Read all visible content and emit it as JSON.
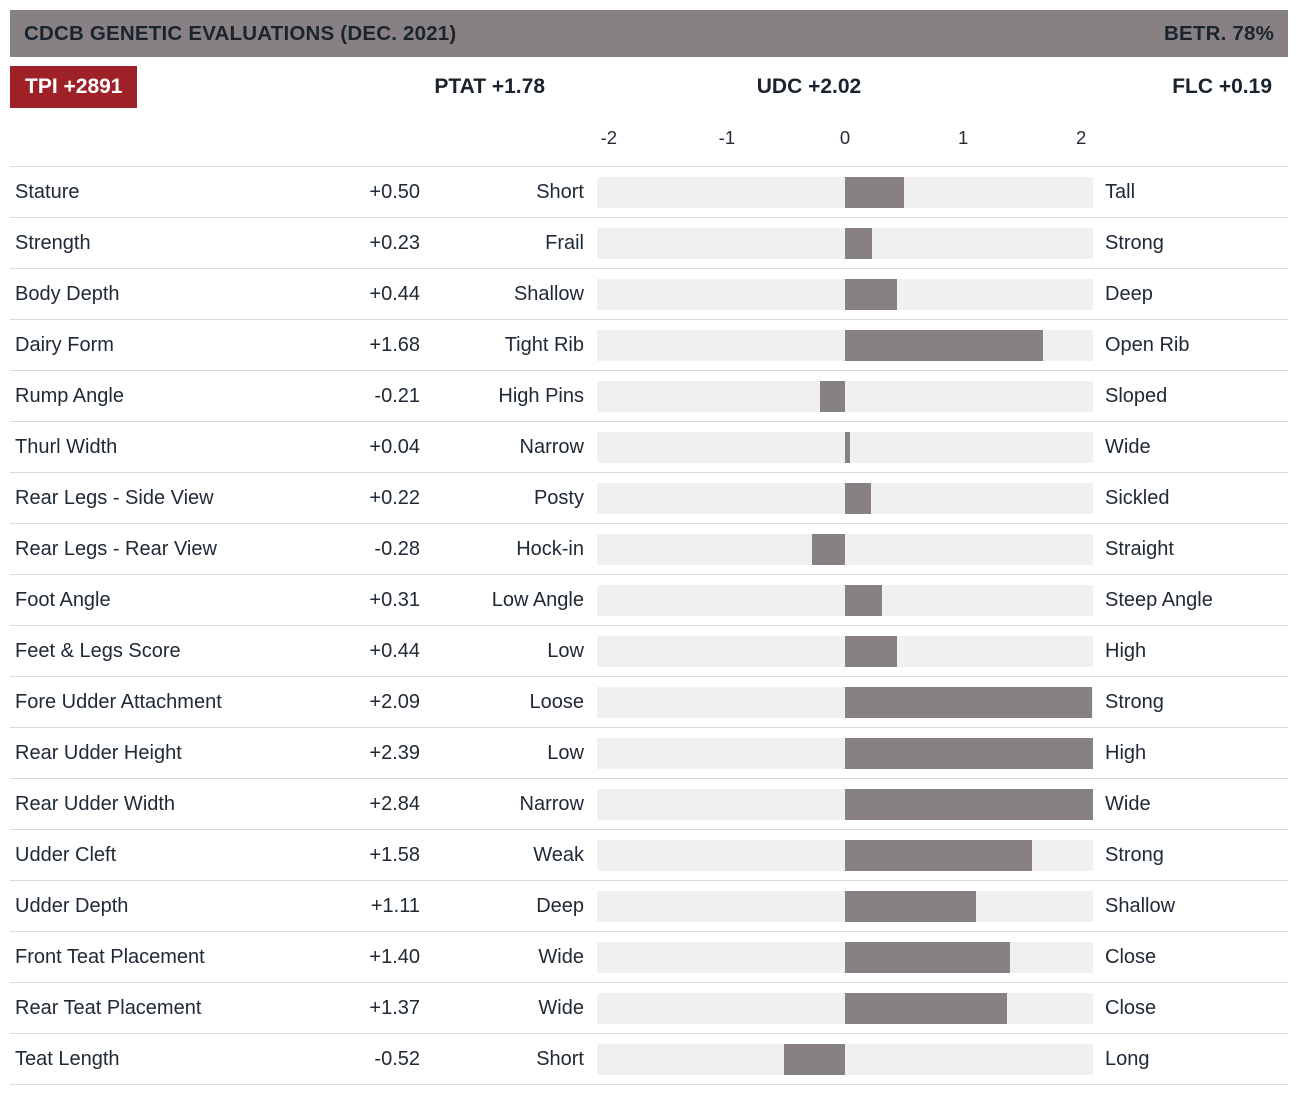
{
  "header": {
    "title": "CDCB GENETIC EVALUATIONS (DEC. 2021)",
    "reliability": "BETR. 78%"
  },
  "summary": {
    "tpi": "TPI +2891",
    "ptat": "PTAT +1.78",
    "udc": "UDC +2.02",
    "flc": "FLC +0.19"
  },
  "colors": {
    "accent_red": "#9e2127",
    "header_gray": "#878183",
    "bar_gray": "#878184",
    "track_gray": "#f0f0f1",
    "divider": "#d9dcde",
    "text_dark": "#1d2733"
  },
  "chart_data": {
    "type": "bar",
    "orientation": "horizontal",
    "title": "CDCB GENETIC EVALUATIONS (DEC. 2021)",
    "axis_ticks": [
      -2,
      -1,
      0,
      1,
      2
    ],
    "axis_range": [
      -2.1,
      2.1
    ],
    "grid": false,
    "rows": [
      {
        "trait": "Stature",
        "value": "+0.50",
        "num": 0.5,
        "low": "Short",
        "high": "Tall"
      },
      {
        "trait": "Strength",
        "value": "+0.23",
        "num": 0.23,
        "low": "Frail",
        "high": "Strong"
      },
      {
        "trait": "Body Depth",
        "value": "+0.44",
        "num": 0.44,
        "low": "Shallow",
        "high": "Deep"
      },
      {
        "trait": "Dairy Form",
        "value": "+1.68",
        "num": 1.68,
        "low": "Tight Rib",
        "high": "Open Rib"
      },
      {
        "trait": "Rump Angle",
        "value": "-0.21",
        "num": -0.21,
        "low": "High Pins",
        "high": "Sloped"
      },
      {
        "trait": "Thurl Width",
        "value": "+0.04",
        "num": 0.04,
        "low": "Narrow",
        "high": "Wide"
      },
      {
        "trait": "Rear Legs - Side View",
        "value": "+0.22",
        "num": 0.22,
        "low": "Posty",
        "high": "Sickled"
      },
      {
        "trait": "Rear Legs - Rear View",
        "value": "-0.28",
        "num": -0.28,
        "low": "Hock-in",
        "high": "Straight"
      },
      {
        "trait": "Foot Angle",
        "value": "+0.31",
        "num": 0.31,
        "low": "Low Angle",
        "high": "Steep Angle"
      },
      {
        "trait": "Feet & Legs Score",
        "value": "+0.44",
        "num": 0.44,
        "low": "Low",
        "high": "High"
      },
      {
        "trait": "Fore Udder Attachment",
        "value": "+2.09",
        "num": 2.09,
        "low": "Loose",
        "high": "Strong"
      },
      {
        "trait": "Rear Udder Height",
        "value": "+2.39",
        "num": 2.39,
        "low": "Low",
        "high": "High"
      },
      {
        "trait": "Rear Udder Width",
        "value": "+2.84",
        "num": 2.84,
        "low": "Narrow",
        "high": "Wide"
      },
      {
        "trait": "Udder Cleft",
        "value": "+1.58",
        "num": 1.58,
        "low": "Weak",
        "high": "Strong"
      },
      {
        "trait": "Udder Depth",
        "value": "+1.11",
        "num": 1.11,
        "low": "Deep",
        "high": "Shallow"
      },
      {
        "trait": "Front Teat Placement",
        "value": "+1.40",
        "num": 1.4,
        "low": "Wide",
        "high": "Close"
      },
      {
        "trait": "Rear Teat Placement",
        "value": "+1.37",
        "num": 1.37,
        "low": "Wide",
        "high": "Close"
      },
      {
        "trait": "Teat Length",
        "value": "-0.52",
        "num": -0.52,
        "low": "Short",
        "high": "Long"
      }
    ]
  }
}
